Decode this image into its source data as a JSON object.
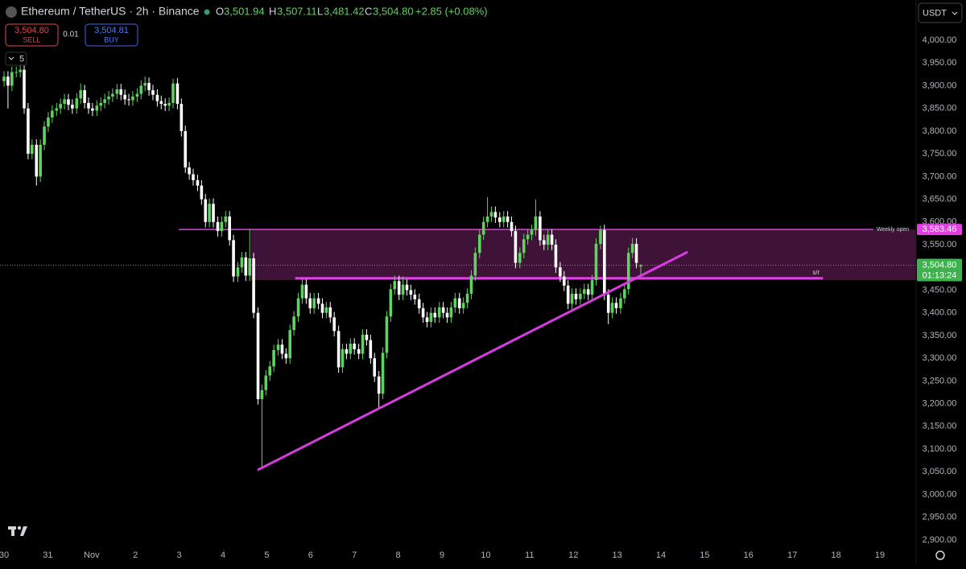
{
  "header": {
    "symbol": "Ethereum / TetherUS · 2h · Binance",
    "ohlc": [
      {
        "label": "O",
        "value": "3,501.94"
      },
      {
        "label": "H",
        "value": "3,507.11"
      },
      {
        "label": "L",
        "value": "3,481.42"
      },
      {
        "label": "C",
        "value": "3,504.80"
      }
    ],
    "change": "+2.85 (+0.08%)",
    "sell": {
      "price": "3,504.80",
      "label": "SELL"
    },
    "spread": "0.01",
    "buy": {
      "price": "3,504.81",
      "label": "BUY"
    },
    "interval": "5",
    "currency": "USDT"
  },
  "chart_data": {
    "type": "candlestick",
    "up_color": "#5fd35f",
    "down_color": "#ffffff",
    "x": [
      0,
      0.09,
      0.18,
      0.28,
      0.37,
      0.46,
      0.55,
      0.64,
      0.74,
      0.83,
      0.92,
      1.01,
      1.1,
      1.2,
      1.29,
      1.38,
      1.47,
      1.56,
      1.66,
      1.75,
      1.84,
      1.93,
      2.02,
      2.12,
      2.21,
      2.3,
      2.39,
      2.48,
      2.58,
      2.67,
      2.76,
      2.85,
      2.94,
      3.04,
      3.13,
      3.22,
      3.31,
      3.4,
      3.5,
      3.59,
      3.68,
      3.77,
      3.86,
      3.96,
      4.05,
      4.14,
      4.23,
      4.32,
      4.42,
      4.51,
      4.6,
      4.69,
      4.78,
      4.88,
      4.97,
      5.06,
      5.15,
      5.24,
      5.34,
      5.43,
      5.52,
      5.61,
      5.7,
      5.8,
      5.89,
      5.98,
      6.07,
      6.16,
      6.26,
      6.35,
      6.44,
      6.53,
      6.62,
      6.72,
      6.81,
      6.9,
      6.99,
      7.08,
      7.18,
      7.27,
      7.36,
      7.45,
      7.54,
      7.64,
      7.73,
      7.82,
      7.91,
      8,
      8.1,
      8.19,
      8.28,
      8.37,
      8.46,
      8.56,
      8.65,
      8.74,
      8.83,
      8.92,
      9.02,
      9.11,
      9.2,
      9.29,
      9.38,
      9.48,
      9.57,
      9.66,
      9.75,
      9.84,
      9.94,
      10.03,
      10.12,
      10.21,
      10.3,
      10.4,
      10.49,
      10.58,
      10.67,
      10.76,
      10.86,
      10.95,
      11.04,
      11.13,
      11.22,
      11.32,
      11.41,
      11.5,
      11.59,
      11.68,
      11.78,
      11.87,
      11.96,
      12.05,
      12.14,
      12.24,
      12.33,
      12.42,
      12.51,
      12.6,
      12.7,
      12.79,
      12.88,
      12.97,
      13.06,
      13.16,
      13.25,
      13.34,
      13.43,
      13.52,
      13.62,
      13.71,
      13.8,
      13.89,
      13.98,
      14.08,
      14.17,
      14.26,
      14.35,
      14.44,
      14.54
    ],
    "open": [
      3910,
      3920,
      3900,
      3930,
      3930,
      3935,
      3850,
      3750,
      3770,
      3700,
      3770,
      3810,
      3830,
      3845,
      3850,
      3860,
      3870,
      3858,
      3850,
      3872,
      3890,
      3862,
      3850,
      3845,
      3856,
      3862,
      3870,
      3876,
      3882,
      3892,
      3880,
      3870,
      3868,
      3876,
      3882,
      3900,
      3906,
      3890,
      3880,
      3866,
      3860,
      3856,
      3862,
      3905,
      3860,
      3800,
      3720,
      3705,
      3692,
      3680,
      3650,
      3600,
      3640,
      3600,
      3580,
      3600,
      3612,
      3560,
      3480,
      3500,
      3522,
      3482,
      3520,
      3400,
      3210,
      3230,
      3262,
      3282,
      3318,
      3330,
      3310,
      3300,
      3362,
      3392,
      3432,
      3462,
      3432,
      3410,
      3432,
      3420,
      3400,
      3412,
      3390,
      3360,
      3280,
      3320,
      3310,
      3332,
      3320,
      3310,
      3352,
      3340,
      3300,
      3260,
      3222,
      3312,
      3392,
      3452,
      3470,
      3440,
      3462,
      3450,
      3440,
      3430,
      3410,
      3390,
      3380,
      3400,
      3390,
      3412,
      3400,
      3390,
      3412,
      3432,
      3410,
      3422,
      3442,
      3482,
      3532,
      3572,
      3600,
      3612,
      3622,
      3610,
      3600,
      3612,
      3600,
      3580,
      3510,
      3532,
      3562,
      3572,
      3582,
      3612,
      3560,
      3550,
      3572,
      3550,
      3500,
      3480,
      3460,
      3420,
      3442,
      3430,
      3442,
      3452,
      3440,
      3472,
      3552,
      3582,
      3440,
      3400,
      3422,
      3410,
      3432,
      3452,
      3532,
      3552,
      3501.94
    ],
    "high": [
      3932,
      3932,
      3942,
      3942,
      3947,
      3947,
      3862,
      3782,
      3782,
      3782,
      3822,
      3842,
      3857,
      3862,
      3872,
      3882,
      3882,
      3870,
      3884,
      3905,
      3902,
      3874,
      3862,
      3868,
      3874,
      3882,
      3888,
      3894,
      3904,
      3904,
      3892,
      3882,
      3888,
      3894,
      3912,
      3920,
      3918,
      3902,
      3892,
      3878,
      3872,
      3874,
      3915,
      3917,
      3872,
      3812,
      3732,
      3717,
      3704,
      3692,
      3662,
      3652,
      3652,
      3612,
      3612,
      3624,
      3624,
      3572,
      3512,
      3534,
      3534,
      3585,
      3532,
      3412,
      3242,
      3274,
      3294,
      3330,
      3342,
      3342,
      3322,
      3374,
      3404,
      3444,
      3475,
      3474,
      3444,
      3444,
      3444,
      3432,
      3424,
      3424,
      3402,
      3372,
      3332,
      3332,
      3344,
      3344,
      3332,
      3364,
      3364,
      3352,
      3312,
      3272,
      3324,
      3404,
      3464,
      3482,
      3482,
      3480,
      3474,
      3462,
      3452,
      3442,
      3422,
      3402,
      3412,
      3412,
      3424,
      3424,
      3412,
      3424,
      3444,
      3444,
      3434,
      3454,
      3494,
      3544,
      3584,
      3612,
      3655,
      3634,
      3634,
      3622,
      3624,
      3624,
      3612,
      3592,
      3544,
      3574,
      3584,
      3594,
      3650,
      3624,
      3572,
      3584,
      3584,
      3562,
      3512,
      3492,
      3472,
      3454,
      3454,
      3454,
      3464,
      3464,
      3484,
      3564,
      3592,
      3594,
      3452,
      3434,
      3434,
      3444,
      3464,
      3544,
      3565,
      3564,
      3507.11
    ],
    "low": [
      3898,
      3850,
      3888,
      3918,
      3918,
      3838,
      3738,
      3738,
      3680,
      3688,
      3758,
      3798,
      3818,
      3833,
      3838,
      3848,
      3846,
      3838,
      3838,
      3860,
      3850,
      3838,
      3833,
      3833,
      3844,
      3850,
      3858,
      3864,
      3870,
      3868,
      3858,
      3856,
      3856,
      3864,
      3870,
      3888,
      3878,
      3868,
      3854,
      3848,
      3844,
      3844,
      3850,
      3848,
      3788,
      3708,
      3693,
      3680,
      3668,
      3638,
      3588,
      3588,
      3588,
      3568,
      3568,
      3588,
      3548,
      3468,
      3468,
      3488,
      3470,
      3470,
      3388,
      3198,
      3060,
      3218,
      3250,
      3270,
      3306,
      3298,
      3288,
      3288,
      3350,
      3380,
      3420,
      3420,
      3398,
      3398,
      3408,
      3388,
      3388,
      3378,
      3348,
      3268,
      3268,
      3298,
      3298,
      3308,
      3298,
      3298,
      3328,
      3288,
      3248,
      3190,
      3210,
      3300,
      3380,
      3440,
      3428,
      3428,
      3438,
      3428,
      3418,
      3398,
      3378,
      3368,
      3368,
      3378,
      3378,
      3388,
      3378,
      3378,
      3400,
      3398,
      3398,
      3410,
      3430,
      3470,
      3520,
      3560,
      3588,
      3600,
      3598,
      3588,
      3588,
      3588,
      3568,
      3498,
      3498,
      3520,
      3550,
      3560,
      3570,
      3548,
      3538,
      3538,
      3538,
      3488,
      3468,
      3448,
      3408,
      3408,
      3418,
      3418,
      3430,
      3428,
      3428,
      3460,
      3540,
      3428,
      3375,
      3388,
      3398,
      3398,
      3420,
      3440,
      3520,
      3498,
      3481.42
    ],
    "close": [
      3920,
      3900,
      3930,
      3930,
      3935,
      3850,
      3750,
      3770,
      3700,
      3770,
      3810,
      3830,
      3845,
      3850,
      3860,
      3870,
      3858,
      3850,
      3872,
      3890,
      3862,
      3850,
      3845,
      3856,
      3862,
      3870,
      3876,
      3882,
      3892,
      3880,
      3870,
      3868,
      3876,
      3882,
      3900,
      3906,
      3890,
      3880,
      3866,
      3860,
      3856,
      3862,
      3905,
      3860,
      3800,
      3720,
      3705,
      3692,
      3680,
      3650,
      3600,
      3640,
      3600,
      3580,
      3600,
      3612,
      3560,
      3480,
      3500,
      3522,
      3482,
      3520,
      3400,
      3210,
      3230,
      3262,
      3282,
      3318,
      3330,
      3310,
      3300,
      3362,
      3392,
      3432,
      3462,
      3432,
      3410,
      3432,
      3420,
      3400,
      3412,
      3390,
      3360,
      3280,
      3320,
      3310,
      3332,
      3320,
      3310,
      3352,
      3340,
      3300,
      3260,
      3222,
      3312,
      3392,
      3452,
      3470,
      3440,
      3462,
      3450,
      3440,
      3430,
      3410,
      3390,
      3380,
      3400,
      3390,
      3412,
      3400,
      3390,
      3412,
      3432,
      3410,
      3422,
      3442,
      3482,
      3532,
      3572,
      3600,
      3612,
      3622,
      3610,
      3600,
      3612,
      3600,
      3580,
      3510,
      3532,
      3562,
      3572,
      3582,
      3612,
      3560,
      3550,
      3572,
      3550,
      3500,
      3480,
      3460,
      3420,
      3442,
      3430,
      3442,
      3452,
      3440,
      3472,
      3552,
      3582,
      3440,
      3400,
      3422,
      3410,
      3432,
      3452,
      3532,
      3552,
      3510,
      3504.8
    ],
    "xlim": [
      -0.092,
      20.827
    ],
    "ylim": [
      2887.5,
      4088.6
    ],
    "xticks": [
      {
        "value": 0,
        "label": "30"
      },
      {
        "value": 1,
        "label": "31"
      },
      {
        "value": 2,
        "label": "Nov"
      },
      {
        "value": 3,
        "label": "2"
      },
      {
        "value": 4,
        "label": "3"
      },
      {
        "value": 5,
        "label": "4"
      },
      {
        "value": 6,
        "label": "5"
      },
      {
        "value": 7,
        "label": "6"
      },
      {
        "value": 8,
        "label": "7"
      },
      {
        "value": 9,
        "label": "8"
      },
      {
        "value": 10,
        "label": "9"
      },
      {
        "value": 11,
        "label": "10"
      },
      {
        "value": 12,
        "label": "11"
      },
      {
        "value": 13,
        "label": "12"
      },
      {
        "value": 14,
        "label": "13"
      },
      {
        "value": 15,
        "label": "14"
      },
      {
        "value": 16,
        "label": "15"
      },
      {
        "value": 17,
        "label": "16"
      },
      {
        "value": 18,
        "label": "17"
      },
      {
        "value": 19,
        "label": "18"
      },
      {
        "value": 20,
        "label": "19"
      }
    ],
    "yticks": [
      {
        "value": 2900,
        "label": "2,900.00"
      },
      {
        "value": 2950,
        "label": "2,950.00"
      },
      {
        "value": 3000,
        "label": "3,000.00"
      },
      {
        "value": 3050,
        "label": "3,050.00"
      },
      {
        "value": 3100,
        "label": "3,100.00"
      },
      {
        "value": 3150,
        "label": "3,150.00"
      },
      {
        "value": 3200,
        "label": "3,200.00"
      },
      {
        "value": 3250,
        "label": "3,250.00"
      },
      {
        "value": 3300,
        "label": "3,300.00"
      },
      {
        "value": 3350,
        "label": "3,350.00"
      },
      {
        "value": 3400,
        "label": "3,400.00"
      },
      {
        "value": 3450,
        "label": "3,450.00"
      },
      {
        "value": 3500,
        "label": "3,500.00"
      },
      {
        "value": 3550,
        "label": "3,550.00"
      },
      {
        "value": 3600,
        "label": "3,600.00"
      },
      {
        "value": 3650,
        "label": "3,650.00"
      },
      {
        "value": 3700,
        "label": "3,700.00"
      },
      {
        "value": 3750,
        "label": "3,750.00"
      },
      {
        "value": 3800,
        "label": "3,800.00"
      },
      {
        "value": 3850,
        "label": "3,850.00"
      },
      {
        "value": 3900,
        "label": "3,900.00"
      },
      {
        "value": 3950,
        "label": "3,950.00"
      },
      {
        "value": 4000,
        "label": "4,000.00"
      }
    ],
    "grid": false,
    "annotations": {
      "zone": {
        "range": [
          3472,
          3583.46
        ],
        "x": [
          5.64,
          20.827
        ],
        "color": "#5a1a4f"
      },
      "weekly_open": {
        "label": "Weekly open",
        "value": 3583.46,
        "value_label": "3,583.46",
        "x": [
          3.99,
          19.85
        ],
        "color": "#e040e0"
      },
      "sr": {
        "label": "s/r",
        "value": 3476,
        "x": [
          6.65,
          18.7
        ],
        "color": "#e040e0"
      },
      "trendline": {
        "x": [
          5.81,
          15.59
        ],
        "y": [
          3055,
          3533
        ],
        "color": "#d63ce0"
      },
      "last_price": {
        "value": 3504.8,
        "value_label": "3,504.80",
        "countdown": "01:13:24",
        "color": "#3fb24f"
      }
    }
  }
}
